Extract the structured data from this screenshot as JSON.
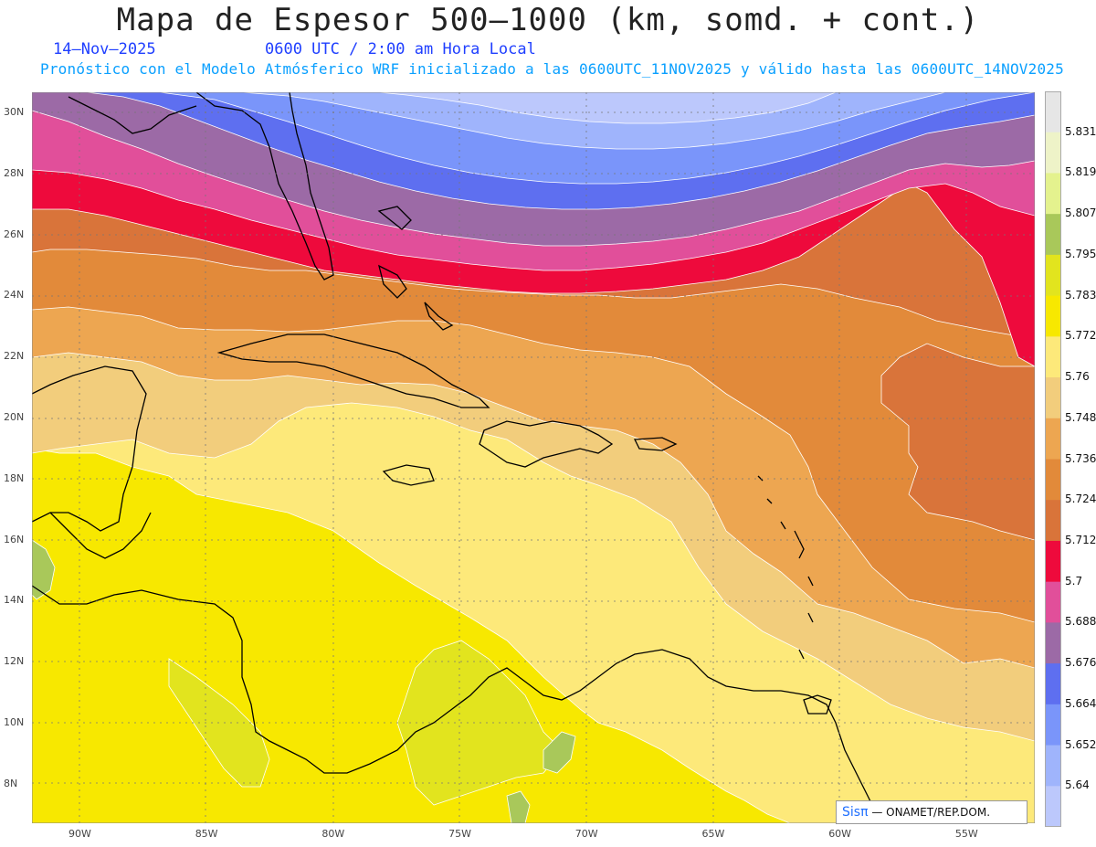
{
  "title": "Mapa de Espesor 500—1000 (km, somd. + cont.)",
  "date": "14—Nov—2025",
  "time": "0600 UTC / 2:00 am Hora Local",
  "forecast_line": "Pronóstico con el Modelo Atmósferico WRF inicializado a las 0600UTC_11NOV2025 y válido hasta las  0600UTC_14NOV2025",
  "credit_logo": "Sisπ",
  "credit_text": "— ONAMET/REP.DOM.",
  "lat_labels": [
    "30N",
    "28N",
    "26N",
    "24N",
    "22N",
    "20N",
    "18N",
    "16N",
    "14N",
    "12N",
    "10N",
    "8N"
  ],
  "lon_labels": [
    "90W",
    "85W",
    "80W",
    "75W",
    "70W",
    "65W",
    "60W",
    "55W"
  ],
  "colorbar": {
    "labels": [
      "5.831",
      "5.819",
      "5.807",
      "5.795",
      "5.783",
      "5.772",
      "5.76",
      "5.748",
      "5.736",
      "5.724",
      "5.712",
      "5.7",
      "5.688",
      "5.676",
      "5.664",
      "5.652",
      "5.64"
    ],
    "colors": [
      "#e6e6e6",
      "#eef3c8",
      "#e4f28e",
      "#a9c85a",
      "#e2e41e",
      "#f7e800",
      "#fde97a",
      "#f2cd7c",
      "#eda651",
      "#e28a3a",
      "#d9743a",
      "#ee0a3c",
      "#e14f9a",
      "#9c6aa6",
      "#5e6ff0",
      "#7a95fa",
      "#9fb4fc",
      "#bcc8fc"
    ]
  },
  "contour_colors": {
    "band_5640": "#bcc8fc",
    "band_5652": "#9fb4fc",
    "band_5664": "#7a95fa",
    "band_5676": "#5e6ff0",
    "band_5688": "#9c6aa6",
    "band_5700": "#e14f9a",
    "band_5712": "#ee0a3c",
    "band_5724": "#d9743a",
    "band_5736": "#e28a3a",
    "band_5748": "#eda651",
    "band_5760": "#f2cd7c",
    "band_5772": "#fde97a",
    "band_5783": "#f7e800",
    "band_5795": "#e2e41e",
    "band_5807": "#a9c85a"
  }
}
